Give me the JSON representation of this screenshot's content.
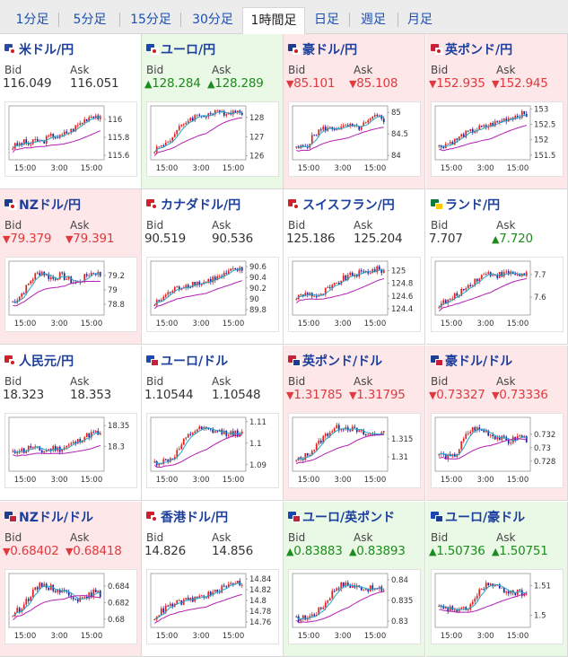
{
  "tabs": [
    {
      "label": "1分足",
      "active": false
    },
    {
      "label": "5分足",
      "active": false
    },
    {
      "label": "15分足",
      "active": false
    },
    {
      "label": "30分足",
      "active": false
    },
    {
      "label": "1時間足",
      "active": true
    },
    {
      "label": "日足",
      "active": false
    },
    {
      "label": "週足",
      "active": false
    },
    {
      "label": "月足",
      "active": false
    }
  ],
  "colors": {
    "up_bg": "#eaf9e6",
    "down_bg": "#fde7e9",
    "up_text": "#1d8b1d",
    "down_text": "#e0393e",
    "candle_up": "#e0221f",
    "candle_down": "#1a2a9c",
    "ma_short": "#23a6c9",
    "ma_long": "#b21fb5"
  },
  "labels": {
    "bid": "Bid",
    "ask": "Ask"
  },
  "pairs": [
    {
      "name": "米ドル/円",
      "flags": [
        "#2b4aa8",
        "#ffffff"
      ],
      "trend": "flat",
      "bid": "116.049",
      "ask": "116.051",
      "bid_dir": "flat",
      "ask_dir": "flat",
      "chart_data": {
        "type": "candlestick",
        "x_ticks": [
          "15:00",
          "3:00",
          "15:00"
        ],
        "y_ticks": [
          "116",
          "115.8",
          "115.6"
        ],
        "ylim": [
          115.55,
          116.15
        ],
        "trend": [
          0.2,
          0.25,
          0.3,
          0.25,
          0.35,
          0.3,
          0.4,
          0.45,
          0.4,
          0.5,
          0.55,
          0.65,
          0.75,
          0.85,
          0.9,
          0.8
        ]
      }
    },
    {
      "name": "ユーロ/円",
      "flags": [
        "#1b46b0",
        "#ffffff"
      ],
      "trend": "up",
      "bid": "128.284",
      "ask": "128.289",
      "bid_dir": "up",
      "ask_dir": "up",
      "chart_data": {
        "type": "candlestick",
        "x_ticks": [
          "15:00",
          "3:00",
          "15:00"
        ],
        "y_ticks": [
          "128",
          "127",
          "126"
        ],
        "ylim": [
          125.8,
          128.6
        ],
        "trend": [
          0.15,
          0.2,
          0.3,
          0.4,
          0.55,
          0.7,
          0.8,
          0.85,
          0.88,
          0.9,
          0.92,
          0.93,
          0.94,
          0.95,
          0.96,
          0.95
        ]
      }
    },
    {
      "name": "豪ドル/円",
      "flags": [
        "#1b3d8f",
        "#ffffff"
      ],
      "trend": "down",
      "bid": "85.101",
      "ask": "85.108",
      "bid_dir": "down",
      "ask_dir": "down",
      "chart_data": {
        "type": "candlestick",
        "x_ticks": [
          "15:00",
          "3:00",
          "15:00"
        ],
        "y_ticks": [
          "85",
          "84.5",
          "84"
        ],
        "ylim": [
          83.9,
          85.15
        ],
        "trend": [
          0.15,
          0.2,
          0.25,
          0.45,
          0.55,
          0.6,
          0.58,
          0.62,
          0.6,
          0.65,
          0.6,
          0.62,
          0.7,
          0.8,
          0.85,
          0.78
        ]
      }
    },
    {
      "name": "英ポンド/円",
      "flags": [
        "#c5213a",
        "#ffffff"
      ],
      "trend": "down",
      "bid": "152.935",
      "ask": "152.945",
      "bid_dir": "down",
      "ask_dir": "down",
      "chart_data": {
        "type": "candlestick",
        "x_ticks": [
          "15:00",
          "3:00",
          "15:00"
        ],
        "y_ticks": [
          "153",
          "152.5",
          "152",
          "151.5"
        ],
        "ylim": [
          151.35,
          153.1
        ],
        "trend": [
          0.2,
          0.25,
          0.3,
          0.35,
          0.45,
          0.5,
          0.55,
          0.6,
          0.62,
          0.68,
          0.72,
          0.78,
          0.82,
          0.86,
          0.9,
          0.88
        ]
      }
    },
    {
      "name": "NZドル/円",
      "flags": [
        "#1b3d8f",
        "#ffffff"
      ],
      "trend": "down",
      "bid": "79.379",
      "ask": "79.391",
      "bid_dir": "down",
      "ask_dir": "down",
      "chart_data": {
        "type": "candlestick",
        "x_ticks": [
          "15:00",
          "3:00",
          "15:00"
        ],
        "y_ticks": [
          "79.2",
          "79",
          "78.8"
        ],
        "ylim": [
          78.65,
          79.4
        ],
        "trend": [
          0.2,
          0.3,
          0.45,
          0.65,
          0.8,
          0.85,
          0.75,
          0.7,
          0.78,
          0.72,
          0.65,
          0.6,
          0.7,
          0.8,
          0.85,
          0.78
        ]
      }
    },
    {
      "name": "カナダドル/円",
      "flags": [
        "#d0202a",
        "#ffffff"
      ],
      "trend": "flat",
      "bid": "90.519",
      "ask": "90.536",
      "bid_dir": "flat",
      "ask_dir": "flat",
      "chart_data": {
        "type": "candlestick",
        "x_ticks": [
          "15:00",
          "3:00",
          "15:00"
        ],
        "y_ticks": [
          "90.6",
          "90.4",
          "90.2",
          "90",
          "89.8"
        ],
        "ylim": [
          89.7,
          90.7
        ],
        "trend": [
          0.15,
          0.25,
          0.35,
          0.45,
          0.5,
          0.55,
          0.58,
          0.62,
          0.6,
          0.65,
          0.7,
          0.72,
          0.78,
          0.85,
          0.9,
          0.88
        ]
      }
    },
    {
      "name": "スイスフラン/円",
      "flags": [
        "#d0202a",
        "#ffffff"
      ],
      "trend": "flat",
      "bid": "125.186",
      "ask": "125.204",
      "bid_dir": "flat",
      "ask_dir": "flat",
      "chart_data": {
        "type": "candlestick",
        "x_ticks": [
          "15:00",
          "3:00",
          "15:00"
        ],
        "y_ticks": [
          "125",
          "124.8",
          "124.6",
          "124.4"
        ],
        "ylim": [
          124.3,
          125.15
        ],
        "trend": [
          0.3,
          0.35,
          0.4,
          0.35,
          0.3,
          0.45,
          0.5,
          0.6,
          0.7,
          0.75,
          0.8,
          0.82,
          0.85,
          0.88,
          0.9,
          0.88
        ]
      }
    },
    {
      "name": "ランド/円",
      "flags": [
        "#0f7a3d",
        "#ffcc00"
      ],
      "trend": "flat",
      "bid": "7.707",
      "ask": "7.720",
      "bid_dir": "flat",
      "ask_dir": "up",
      "chart_data": {
        "type": "candlestick",
        "x_ticks": [
          "15:00",
          "3:00",
          "15:00"
        ],
        "y_ticks": [
          "7.7",
          "7.6"
        ],
        "ylim": [
          7.52,
          7.76
        ],
        "trend": [
          0.15,
          0.2,
          0.25,
          0.35,
          0.45,
          0.55,
          0.65,
          0.75,
          0.8,
          0.82,
          0.78,
          0.8,
          0.82,
          0.8,
          0.78,
          0.82
        ]
      }
    },
    {
      "name": "人民元/円",
      "flags": [
        "#d0202a",
        "#ffffff"
      ],
      "trend": "flat",
      "bid": "18.323",
      "ask": "18.353",
      "bid_dir": "flat",
      "ask_dir": "flat",
      "chart_data": {
        "type": "candlestick",
        "x_ticks": [
          "15:00",
          "3:00",
          "15:00"
        ],
        "y_ticks": [
          "18.35",
          "18.3"
        ],
        "ylim": [
          18.24,
          18.37
        ],
        "trend": [
          0.3,
          0.4,
          0.35,
          0.45,
          0.4,
          0.35,
          0.38,
          0.42,
          0.4,
          0.45,
          0.5,
          0.55,
          0.65,
          0.7,
          0.75,
          0.7
        ]
      }
    },
    {
      "name": "ユーロ/ドル",
      "flags": [
        "#1b46b0",
        "#c5213a"
      ],
      "trend": "flat",
      "bid": "1.10544",
      "ask": "1.10548",
      "bid_dir": "flat",
      "ask_dir": "flat",
      "chart_data": {
        "type": "candlestick",
        "x_ticks": [
          "15:00",
          "3:00",
          "15:00"
        ],
        "y_ticks": [
          "1.11",
          "1.1",
          "1.09"
        ],
        "ylim": [
          1.087,
          1.112
        ],
        "trend": [
          0.1,
          0.12,
          0.15,
          0.2,
          0.35,
          0.55,
          0.7,
          0.8,
          0.82,
          0.8,
          0.78,
          0.76,
          0.75,
          0.74,
          0.73,
          0.72
        ]
      }
    },
    {
      "name": "英ポンド/ドル",
      "flags": [
        "#c5213a",
        "#1b3d8f"
      ],
      "trend": "down",
      "bid": "1.31785",
      "ask": "1.31795",
      "bid_dir": "down",
      "ask_dir": "down",
      "chart_data": {
        "type": "candlestick",
        "x_ticks": [
          "15:00",
          "3:00",
          "15:00"
        ],
        "y_ticks": [
          "1.315",
          "1.31"
        ],
        "ylim": [
          1.306,
          1.321
        ],
        "trend": [
          0.15,
          0.2,
          0.3,
          0.4,
          0.55,
          0.7,
          0.8,
          0.85,
          0.88,
          0.85,
          0.8,
          0.75,
          0.7,
          0.72,
          0.75,
          0.72
        ]
      }
    },
    {
      "name": "豪ドル/ドル",
      "flags": [
        "#1b3d8f",
        "#c5213a"
      ],
      "trend": "down",
      "bid": "0.73327",
      "ask": "0.73336",
      "bid_dir": "down",
      "ask_dir": "down",
      "chart_data": {
        "type": "candlestick",
        "x_ticks": [
          "15:00",
          "3:00",
          "15:00"
        ],
        "y_ticks": [
          "0.732",
          "0.73",
          "0.728"
        ],
        "ylim": [
          0.7265,
          0.7345
        ],
        "trend": [
          0.3,
          0.25,
          0.2,
          0.3,
          0.55,
          0.75,
          0.85,
          0.8,
          0.78,
          0.7,
          0.65,
          0.6,
          0.55,
          0.62,
          0.68,
          0.6
        ]
      }
    },
    {
      "name": "NZドル/ドル",
      "flags": [
        "#1b3d8f",
        "#c5213a"
      ],
      "trend": "down",
      "bid": "0.68402",
      "ask": "0.68418",
      "bid_dir": "down",
      "ask_dir": "down",
      "chart_data": {
        "type": "candlestick",
        "x_ticks": [
          "15:00",
          "3:00",
          "15:00"
        ],
        "y_ticks": [
          "0.684",
          "0.682",
          "0.68"
        ],
        "ylim": [
          0.679,
          0.6855
        ],
        "trend": [
          0.2,
          0.3,
          0.45,
          0.6,
          0.75,
          0.85,
          0.8,
          0.75,
          0.72,
          0.68,
          0.62,
          0.55,
          0.5,
          0.6,
          0.68,
          0.62
        ]
      }
    },
    {
      "name": "香港ドル/円",
      "flags": [
        "#d0202a",
        "#ffffff"
      ],
      "trend": "flat",
      "bid": "14.826",
      "ask": "14.856",
      "bid_dir": "flat",
      "ask_dir": "flat",
      "chart_data": {
        "type": "candlestick",
        "x_ticks": [
          "15:00",
          "3:00",
          "15:00"
        ],
        "y_ticks": [
          "14.84",
          "14.82",
          "14.8",
          "14.78",
          "14.76"
        ],
        "ylim": [
          14.75,
          14.85
        ],
        "trend": [
          0.15,
          0.25,
          0.35,
          0.4,
          0.45,
          0.48,
          0.5,
          0.55,
          0.58,
          0.62,
          0.65,
          0.72,
          0.78,
          0.85,
          0.9,
          0.86
        ]
      }
    },
    {
      "name": "ユーロ/英ポンド",
      "flags": [
        "#1b46b0",
        "#c5213a"
      ],
      "trend": "up",
      "bid": "0.83883",
      "ask": "0.83893",
      "bid_dir": "up",
      "ask_dir": "up",
      "chart_data": {
        "type": "candlestick",
        "x_ticks": [
          "15:00",
          "3:00",
          "15:00"
        ],
        "y_ticks": [
          "0.84",
          "0.835",
          "0.83"
        ],
        "ylim": [
          0.8285,
          0.8415
        ],
        "trend": [
          0.1,
          0.12,
          0.15,
          0.2,
          0.3,
          0.45,
          0.65,
          0.8,
          0.85,
          0.82,
          0.8,
          0.78,
          0.76,
          0.75,
          0.74,
          0.73
        ]
      }
    },
    {
      "name": "ユーロ/豪ドル",
      "flags": [
        "#1b46b0",
        "#1b3d8f"
      ],
      "trend": "up",
      "bid": "1.50736",
      "ask": "1.50751",
      "bid_dir": "up",
      "ask_dir": "up",
      "chart_data": {
        "type": "candlestick",
        "x_ticks": [
          "15:00",
          "3:00",
          "15:00"
        ],
        "y_ticks": [
          "1.51",
          "1.5"
        ],
        "ylim": [
          1.496,
          1.514
        ],
        "trend": [
          0.35,
          0.3,
          0.32,
          0.3,
          0.28,
          0.35,
          0.5,
          0.7,
          0.85,
          0.82,
          0.78,
          0.72,
          0.7,
          0.68,
          0.66,
          0.65
        ]
      }
    }
  ]
}
